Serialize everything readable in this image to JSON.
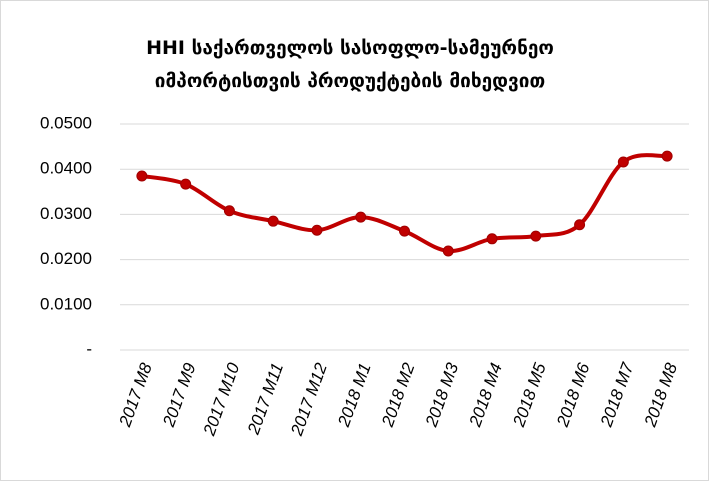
{
  "chart_data": {
    "type": "line",
    "title": "HHI  საქართველოს სასოფლო-სამეურნეო იმპორტისთვის პროდუქტების მიხედვით",
    "categories": [
      "2017 M8",
      "2017 M9",
      "2017 M10",
      "2017 M11",
      "2017 M12",
      "2018 M1",
      "2018 M2",
      "2018 M3",
      "2018 M4",
      "2018 M5",
      "2018 M6",
      "2018 M7",
      "2018 M8"
    ],
    "series": [
      {
        "name": "HHI",
        "color": "#c00000",
        "values": [
          0.0385,
          0.0367,
          0.0308,
          0.0285,
          0.0265,
          0.0294,
          0.0263,
          0.0219,
          0.0246,
          0.0252,
          0.0277,
          0.0416,
          0.0429
        ]
      }
    ],
    "ylim": [
      0,
      0.05
    ],
    "yticks": [
      {
        "value": 0,
        "label": "-"
      },
      {
        "value": 0.01,
        "label": "0.0100"
      },
      {
        "value": 0.02,
        "label": "0.0200"
      },
      {
        "value": 0.03,
        "label": "0.0300"
      },
      {
        "value": 0.04,
        "label": "0.0400"
      },
      {
        "value": 0.05,
        "label": "0.0500"
      }
    ],
    "grid": true,
    "smooth": true
  }
}
